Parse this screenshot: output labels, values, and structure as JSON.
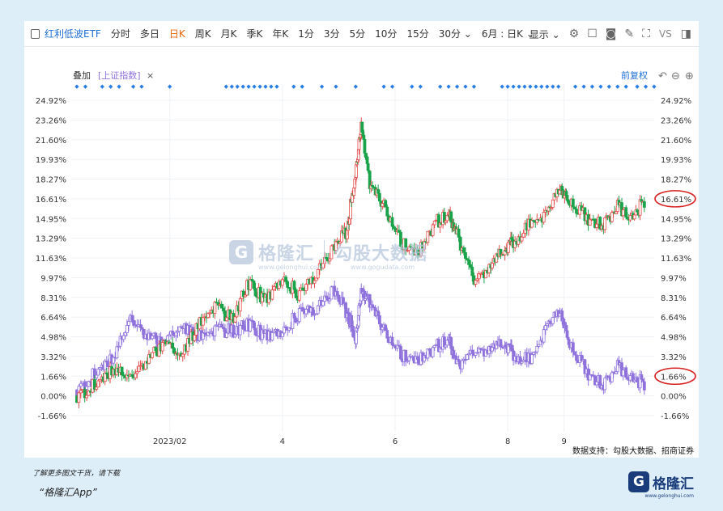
{
  "toolbar": {
    "title": "红利低波ETF",
    "periods": [
      "分时",
      "多日",
      "日K",
      "周K",
      "月K",
      "季K",
      "年K",
      "1分",
      "3分",
      "5分",
      "10分",
      "15分",
      "30分 ⌄",
      "6月 : 日K ⌄"
    ],
    "active_period": "日K",
    "display_label": "显示 ⌄",
    "vs_label": "VS"
  },
  "overlay": {
    "label": "叠加",
    "index_label": "[上证指数]",
    "close_symbol": "×",
    "adjust_label": "前复权"
  },
  "chart_data": {
    "type": "candlestick",
    "title": "",
    "xlabel": "",
    "ylabel": "",
    "y_ticks": [
      "24.92%",
      "23.26%",
      "21.60%",
      "19.93%",
      "18.27%",
      "16.61%",
      "14.95%",
      "13.29%",
      "11.63%",
      "9.97%",
      "8.31%",
      "6.64%",
      "4.98%",
      "3.32%",
      "1.66%",
      "0.00%",
      "-1.66%"
    ],
    "ylim": [
      -1.66,
      24.92
    ],
    "x_ticks": [
      "2023/02",
      "4",
      "6",
      "8",
      "9"
    ],
    "x_tick_positions_months": [
      1.0,
      3.0,
      5.0,
      7.0,
      8.0
    ],
    "grid": true,
    "highlighted_labels": [
      "16.61%",
      "1.66%"
    ],
    "series": [
      {
        "name": "红利低波ETF",
        "colors": {
          "up": "#e64b4b",
          "down": "#1aa34a"
        },
        "months": [
          -0.65,
          -0.3,
          0.0,
          0.3,
          0.6,
          0.9,
          1.2,
          1.5,
          1.8,
          2.1,
          2.4,
          2.7,
          3.0,
          3.3,
          3.6,
          3.9,
          4.15,
          4.3,
          4.4,
          4.55,
          4.8,
          5.1,
          5.4,
          5.7,
          5.95,
          6.1,
          6.4,
          6.7,
          6.95,
          7.1,
          7.4,
          7.7,
          7.95,
          8.1,
          8.4,
          8.7,
          8.95,
          9.2,
          9.45
        ],
        "values": [
          0.0,
          1.0,
          2.5,
          1.5,
          3.0,
          4.5,
          3.5,
          6.0,
          7.5,
          6.5,
          9.5,
          8.0,
          10.0,
          8.5,
          10.5,
          12.5,
          14.0,
          19.0,
          22.5,
          18.0,
          16.0,
          13.0,
          12.0,
          14.5,
          15.5,
          13.5,
          9.5,
          11.0,
          12.5,
          13.0,
          14.5,
          15.5,
          17.5,
          16.5,
          15.0,
          14.5,
          16.0,
          15.0,
          16.61
        ]
      },
      {
        "name": "上证指数",
        "color": "#8f72dc",
        "months": [
          -0.65,
          -0.3,
          0.0,
          0.3,
          0.6,
          0.9,
          1.2,
          1.5,
          1.8,
          2.1,
          2.4,
          2.7,
          3.0,
          3.3,
          3.6,
          3.9,
          4.15,
          4.3,
          4.4,
          4.55,
          4.8,
          5.1,
          5.4,
          5.7,
          5.95,
          6.1,
          6.4,
          6.7,
          6.95,
          7.1,
          7.4,
          7.7,
          7.95,
          8.1,
          8.4,
          8.7,
          8.95,
          9.2,
          9.45
        ],
        "values": [
          0.5,
          2.0,
          3.5,
          6.5,
          5.0,
          4.5,
          6.0,
          5.0,
          5.5,
          5.5,
          6.0,
          5.0,
          5.5,
          7.0,
          7.5,
          9.0,
          7.0,
          5.0,
          8.5,
          8.0,
          5.5,
          3.5,
          3.0,
          4.0,
          5.0,
          2.5,
          3.5,
          4.0,
          4.5,
          3.5,
          3.0,
          6.0,
          7.0,
          4.5,
          2.0,
          1.0,
          2.5,
          1.5,
          1.0
        ]
      }
    ],
    "markers": {
      "symbol": "◆",
      "color": "#2a7de1",
      "months": [
        -0.65,
        -0.5,
        -0.2,
        -0.05,
        0.1,
        0.35,
        0.5,
        1.0,
        2.0,
        2.1,
        2.2,
        2.3,
        2.4,
        2.5,
        2.6,
        2.7,
        2.8,
        2.9,
        3.2,
        3.35,
        3.7,
        3.95,
        4.3,
        4.8,
        4.95,
        5.3,
        5.45,
        5.8,
        5.95,
        6.1,
        6.25,
        6.4,
        6.9,
        7.0,
        7.1,
        7.2,
        7.3,
        7.4,
        7.5,
        7.6,
        7.7,
        7.8,
        7.9,
        8.2,
        8.35,
        8.5,
        8.65,
        8.8,
        8.95,
        9.1,
        9.3,
        9.45,
        9.6
      ]
    }
  },
  "source_label": "数据支持：勾股大数据、招商证券",
  "watermark": {
    "brand": "格隆汇",
    "brand_url": "www.gelonghui.com",
    "partner": "勾股大数据",
    "partner_url": "www.gogudata.com"
  },
  "footer": {
    "line1": "了解更多图文干货，请下载",
    "line2": "“格隆汇App”"
  },
  "logo": {
    "text": "格隆汇",
    "url": "www.gelonghui.com"
  }
}
